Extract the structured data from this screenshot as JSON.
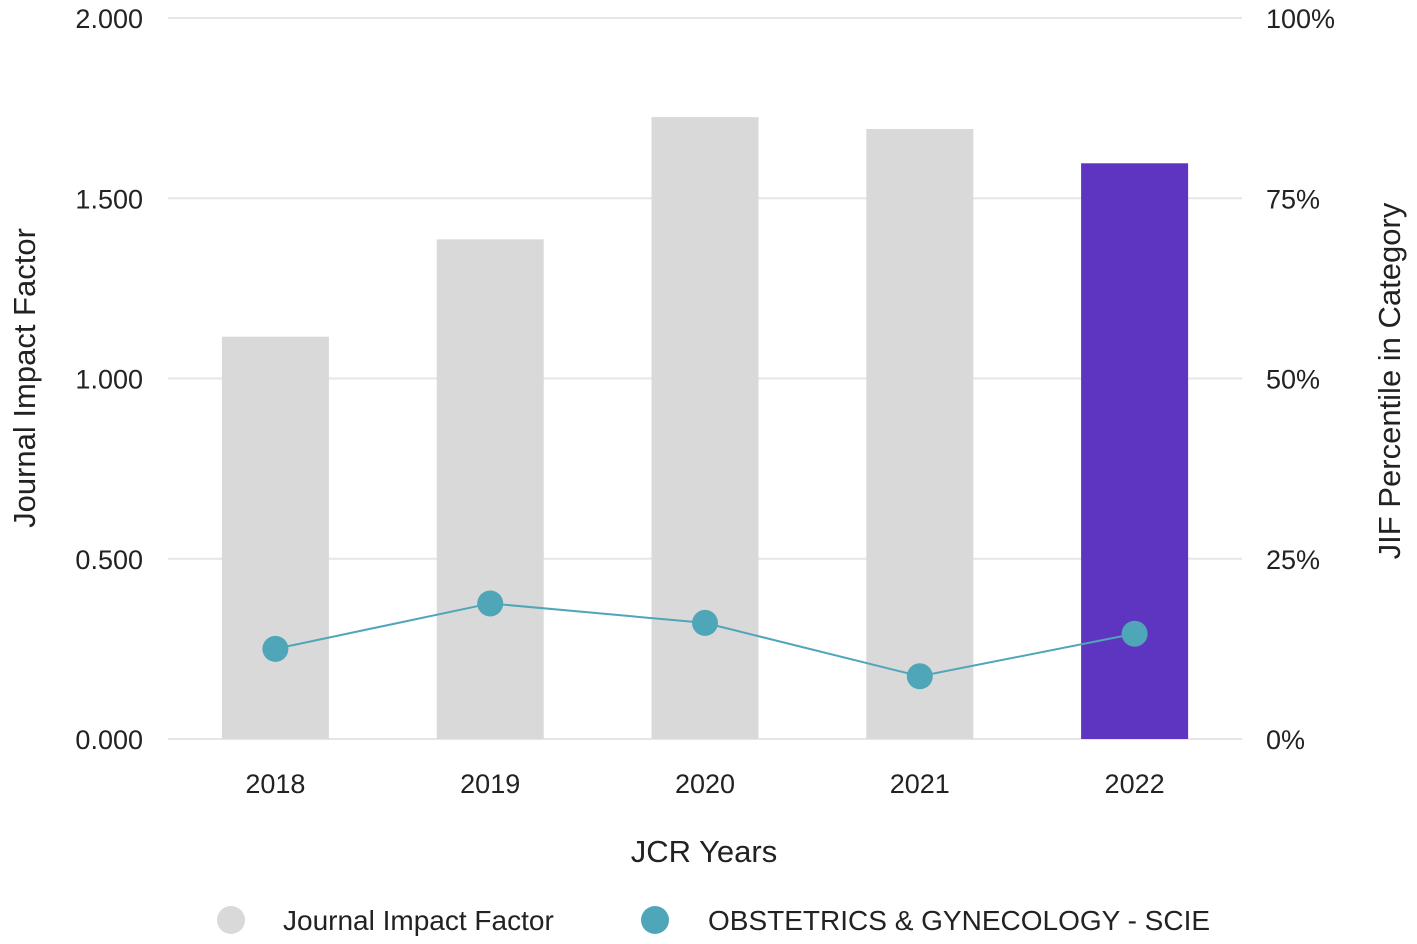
{
  "chart_data": {
    "type": "bar",
    "categories": [
      "2018",
      "2019",
      "2020",
      "2021",
      "2022"
    ],
    "xlabel": "JCR Years",
    "ylabel": "Journal Impact Factor",
    "y2label": "JIF Percentile in Category",
    "ylim": [
      0,
      2
    ],
    "y2lim": [
      0,
      100
    ],
    "yticks": [
      "0.000",
      "0.500",
      "1.000",
      "1.500",
      "2.000"
    ],
    "y2ticks": [
      "0%",
      "25%",
      "50%",
      "75%",
      "100%"
    ],
    "grid": true,
    "legend_position": "bottom",
    "series": [
      {
        "name": "Journal Impact Factor",
        "type": "bar",
        "axis": "left",
        "values": [
          1.116,
          1.386,
          1.725,
          1.692,
          1.597
        ],
        "color": "#d9d9d9",
        "highlight_color": "#5e35c1",
        "highlight_category": "2022"
      },
      {
        "name": "OBSTETRICS & GYNECOLOGY - SCIE",
        "type": "line",
        "axis": "right",
        "values": [
          12.5,
          18.8,
          16.1,
          8.7,
          14.6
        ],
        "color": "#4fa6b8"
      }
    ]
  }
}
